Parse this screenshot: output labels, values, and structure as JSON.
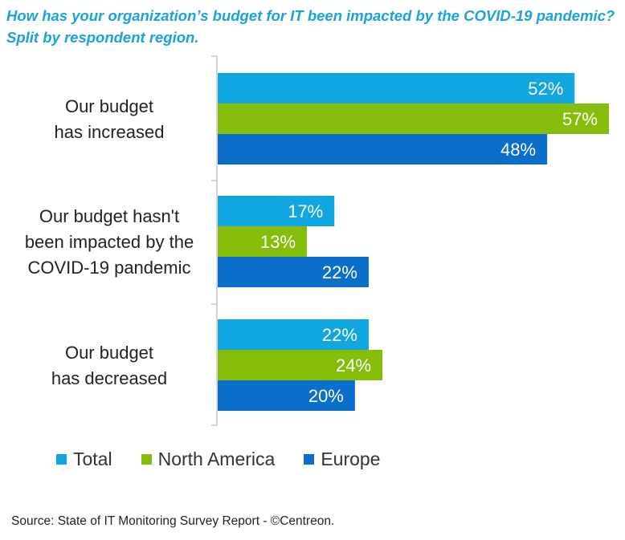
{
  "chart_data": {
    "type": "bar",
    "orientation": "horizontal",
    "title": "How has your organization’s budget for IT been impacted by the COVID-19 pandemic? Split by respondent region.",
    "categories": [
      [
        "Our budget",
        "has increased"
      ],
      [
        "Our budget hasn't",
        "been impacted by the",
        "COVID-19 pandemic"
      ],
      [
        "Our budget",
        "has decreased"
      ]
    ],
    "series": [
      {
        "name": "Total",
        "color": "#12a6e0",
        "values": [
          52,
          17,
          22
        ],
        "labels": [
          "52%",
          "17%",
          "22%"
        ]
      },
      {
        "name": "North America",
        "color": "#86bc0a",
        "values": [
          57,
          13,
          24
        ],
        "labels": [
          "57%",
          "13%",
          "24%"
        ]
      },
      {
        "name": "Europe",
        "color": "#0a6ecb",
        "values": [
          48,
          22,
          20
        ],
        "labels": [
          "48%",
          "22%",
          "20%"
        ]
      }
    ],
    "xlim": [
      0,
      57
    ],
    "grid": false,
    "legend_position": "bottom",
    "source": "Source: State of IT Monitoring Survey Report - ©Centreon."
  }
}
